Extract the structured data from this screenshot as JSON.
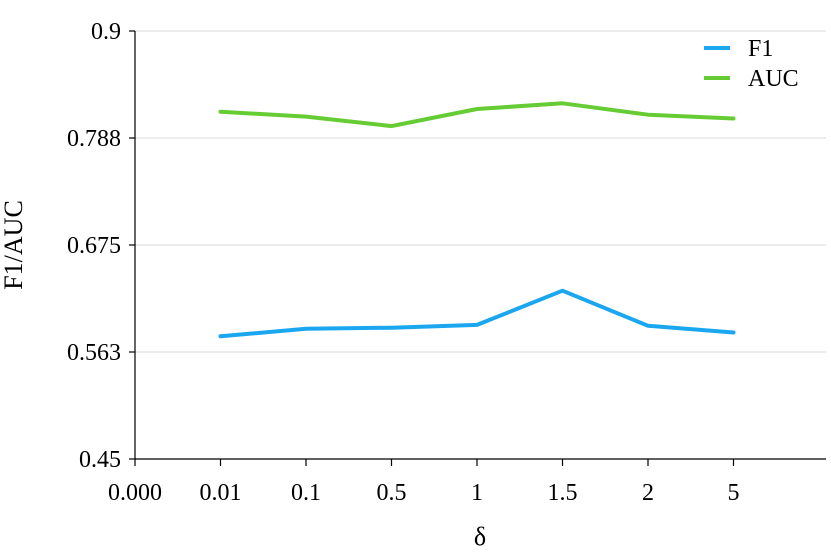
{
  "chart_data": {
    "type": "line",
    "title": "",
    "xlabel": "δ",
    "ylabel": "F1/AUC",
    "x_tick_labels": [
      "0.000",
      "0.01",
      "0.1",
      "0.5",
      "1",
      "1.5",
      "2",
      "5"
    ],
    "categories": [
      "0.01",
      "0.1",
      "0.5",
      "1",
      "1.5",
      "2",
      "5"
    ],
    "y_tick_labels": [
      "0.45",
      "0.563",
      "0.675",
      "0.788",
      "0.9"
    ],
    "ylim": [
      0.45,
      0.9
    ],
    "grid": true,
    "legend_position": "top-right",
    "series": [
      {
        "name": "F1",
        "color": "#1aa7f0",
        "values": [
          0.579,
          0.587,
          0.588,
          0.591,
          0.627,
          0.59,
          0.583
        ]
      },
      {
        "name": "AUC",
        "color": "#66cc33",
        "values": [
          0.815,
          0.81,
          0.8,
          0.818,
          0.824,
          0.812,
          0.808
        ]
      }
    ]
  }
}
